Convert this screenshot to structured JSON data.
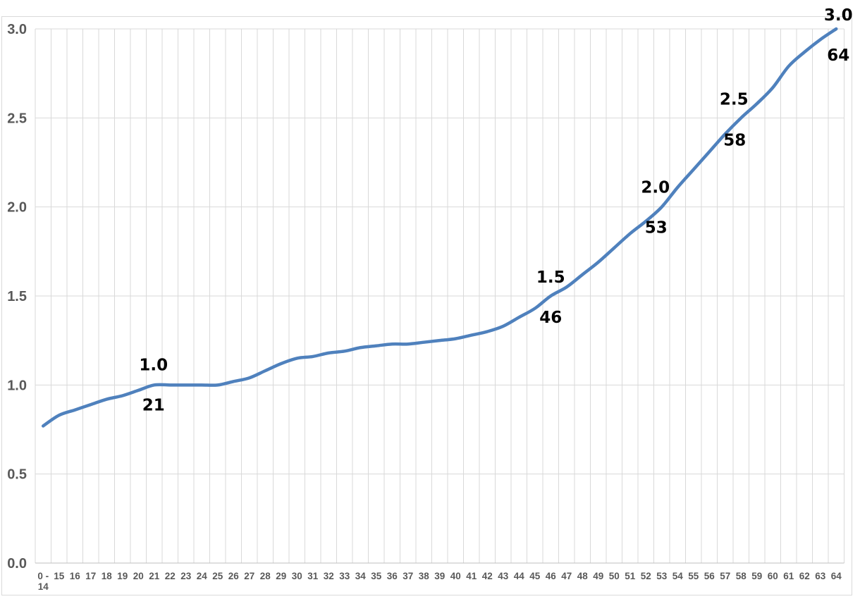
{
  "chart_data": {
    "type": "line",
    "categories": [
      "0 -\n14",
      "15",
      "16",
      "17",
      "18",
      "19",
      "20",
      "21",
      "22",
      "23",
      "24",
      "25",
      "26",
      "27",
      "28",
      "29",
      "30",
      "31",
      "32",
      "33",
      "34",
      "35",
      "36",
      "37",
      "38",
      "39",
      "40",
      "41",
      "42",
      "43",
      "44",
      "45",
      "46",
      "47",
      "48",
      "49",
      "50",
      "51",
      "52",
      "53",
      "54",
      "55",
      "56",
      "57",
      "58",
      "59",
      "60",
      "61",
      "62",
      "63",
      "64"
    ],
    "values": [
      0.77,
      0.83,
      0.86,
      0.89,
      0.92,
      0.94,
      0.97,
      1.0,
      1.0,
      1.0,
      1.0,
      1.0,
      1.02,
      1.04,
      1.08,
      1.12,
      1.15,
      1.16,
      1.18,
      1.19,
      1.21,
      1.22,
      1.23,
      1.23,
      1.24,
      1.25,
      1.26,
      1.28,
      1.3,
      1.33,
      1.38,
      1.43,
      1.5,
      1.55,
      1.62,
      1.69,
      1.77,
      1.85,
      1.92,
      2.0,
      2.11,
      2.21,
      2.31,
      2.41,
      2.5,
      2.58,
      2.67,
      2.79,
      2.87,
      2.94,
      3.0
    ],
    "ylim": [
      0,
      3
    ],
    "yticks": [
      "0.0",
      "0.5",
      "1.0",
      "1.5",
      "2.0",
      "2.5",
      "3.0"
    ],
    "grid": true,
    "line_smooth": true,
    "annotations": [
      {
        "category_index": 7,
        "value_label": "1.0",
        "category_label": "21"
      },
      {
        "category_index": 32,
        "value_label": "1.5",
        "category_label": "46"
      },
      {
        "category_index": 39,
        "value_label": "2.0",
        "category_label": "53"
      },
      {
        "category_index": 44,
        "value_label": "2.5",
        "category_label": "58"
      },
      {
        "category_index": 50,
        "value_label": "3.0",
        "category_label": "64"
      }
    ]
  },
  "colors": {
    "line": "#4F81BD",
    "gridline": "#D9D9D9",
    "axis_line": "#BFBFBF",
    "frame_border": "#D9D9D9",
    "tick_text": "#595959",
    "data_label_text": "#000000",
    "background": "#FFFFFF"
  }
}
